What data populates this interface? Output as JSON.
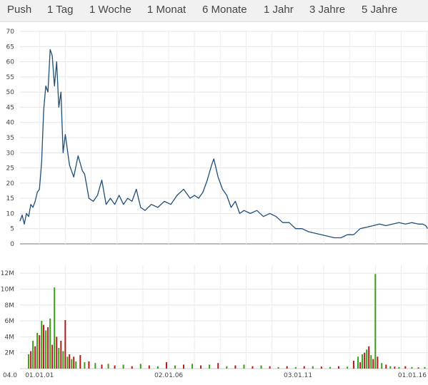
{
  "tabs": [
    {
      "id": "push",
      "label": "Push"
    },
    {
      "id": "1tag",
      "label": "1 Tag"
    },
    {
      "id": "1woche",
      "label": "1 Woche"
    },
    {
      "id": "1monat",
      "label": "1 Monat"
    },
    {
      "id": "6monate",
      "label": "6 Monate"
    },
    {
      "id": "1jahr",
      "label": "1 Jahr"
    },
    {
      "id": "3jahre",
      "label": "3 Jahre"
    },
    {
      "id": "5jahre",
      "label": "5 Jahre"
    }
  ],
  "chart_data": [
    {
      "type": "line",
      "title": "",
      "xlabel": "",
      "ylabel": "",
      "ylim": [
        0,
        70
      ],
      "y_ticks": [
        "0",
        "5",
        "10",
        "15",
        "20",
        "25",
        "30",
        "35",
        "40",
        "45",
        "50",
        "55",
        "60",
        "65",
        "70"
      ],
      "xlim": [
        "2000-04-01",
        "2016-01-15"
      ],
      "grid": true,
      "line_color": "#1f4e79",
      "series": [
        {
          "x": [
            "2000-04-01",
            "2000-05-01",
            "2000-06-01",
            "2000-07-01",
            "2000-08-01",
            "2000-09-01",
            "2000-10-01",
            "2000-11-01",
            "2000-12-01",
            "2001-01-01",
            "2001-02-01",
            "2001-03-01",
            "2001-04-01",
            "2001-05-01",
            "2001-06-01",
            "2001-07-01",
            "2001-08-01",
            "2001-09-01",
            "2001-10-01",
            "2001-11-01",
            "2001-12-01",
            "2002-01-01",
            "2002-03-01",
            "2002-05-01",
            "2002-07-01",
            "2002-09-01",
            "2002-10-01",
            "2002-11-01",
            "2002-12-01",
            "2003-02-01",
            "2003-04-01",
            "2003-06-01",
            "2003-08-01",
            "2003-10-01",
            "2003-12-01",
            "2004-02-01",
            "2004-04-01",
            "2004-06-01",
            "2004-08-01",
            "2004-10-01",
            "2004-12-01",
            "2005-02-01",
            "2005-05-01",
            "2005-08-01",
            "2005-11-01",
            "2006-02-01",
            "2006-05-01",
            "2006-08-01",
            "2006-11-01",
            "2007-01-01",
            "2007-03-01",
            "2007-05-01",
            "2007-07-01",
            "2007-09-01",
            "2007-10-01",
            "2007-12-01",
            "2008-02-01",
            "2008-04-01",
            "2008-06-01",
            "2008-08-01",
            "2008-10-01",
            "2008-12-01",
            "2009-03-01",
            "2009-06-01",
            "2009-09-01",
            "2009-12-01",
            "2010-03-01",
            "2010-06-01",
            "2010-09-01",
            "2010-12-01",
            "2011-03-01",
            "2011-06-01",
            "2011-09-01",
            "2011-12-01",
            "2012-03-01",
            "2012-06-01",
            "2012-09-01",
            "2012-12-01",
            "2013-03-01",
            "2013-06-01",
            "2013-09-01",
            "2013-12-01",
            "2014-03-01",
            "2014-06-01",
            "2014-09-01",
            "2014-12-01",
            "2015-03-01",
            "2015-06-01",
            "2015-09-01",
            "2015-11-01",
            "2015-12-15",
            "2016-01-10"
          ],
          "values": [
            7.5,
            9.5,
            6.5,
            10,
            9,
            13,
            12,
            14,
            17,
            18,
            27,
            44,
            52,
            50,
            64,
            62,
            52,
            60,
            45,
            50,
            30,
            36,
            26,
            22,
            29,
            24,
            23,
            19,
            15,
            14,
            16,
            21,
            13,
            15,
            13,
            16,
            13,
            15,
            14,
            18,
            12,
            11,
            13,
            12,
            14,
            13,
            16,
            18,
            15,
            16,
            15,
            17,
            21,
            26,
            28,
            22,
            18,
            16,
            12,
            14,
            10,
            11,
            10,
            11,
            9,
            10,
            9,
            7,
            7,
            5,
            5,
            4,
            3.5,
            3,
            2.5,
            2,
            2,
            3,
            3,
            5,
            5.5,
            6,
            6.5,
            6,
            6.5,
            7,
            6.5,
            7,
            6.5,
            6.5,
            6,
            5
          ]
        }
      ]
    },
    {
      "type": "bar",
      "title": "",
      "xlabel": "",
      "ylabel": "",
      "ylim": [
        0,
        13000000
      ],
      "y_ticks": [
        "2M",
        "4M",
        "6M",
        "8M",
        "10M",
        "12M"
      ],
      "x_ticks": [
        "04.0",
        "01.01.01",
        "02.01.06",
        "03.01.11",
        "01.01.16"
      ],
      "grid": true,
      "up_color": "#3a9c1a",
      "down_color": "#b01c1c",
      "series": [
        {
          "name": "",
          "x": [
            "2000-08",
            "2000-09",
            "2000-10",
            "2000-11",
            "2000-12",
            "2001-01",
            "2001-02",
            "2001-03",
            "2001-04",
            "2001-05",
            "2001-06",
            "2001-07",
            "2001-08",
            "2001-09",
            "2001-10",
            "2001-11",
            "2001-12",
            "2002-01",
            "2002-02",
            "2002-03",
            "2002-04",
            "2002-05",
            "2002-06",
            "2002-08",
            "2002-10",
            "2002-12",
            "2003-03",
            "2003-06",
            "2003-09",
            "2003-12",
            "2004-04",
            "2004-08",
            "2004-12",
            "2005-04",
            "2005-08",
            "2005-12",
            "2006-04",
            "2006-08",
            "2006-12",
            "2007-04",
            "2007-08",
            "2007-12",
            "2008-04",
            "2008-08",
            "2008-12",
            "2009-04",
            "2009-08",
            "2009-12",
            "2010-04",
            "2010-08",
            "2010-12",
            "2011-04",
            "2011-08",
            "2011-12",
            "2012-04",
            "2012-08",
            "2012-12",
            "2013-03",
            "2013-05",
            "2013-06",
            "2013-07",
            "2013-08",
            "2013-09",
            "2013-10",
            "2013-11",
            "2013-12",
            "2014-01",
            "2014-02",
            "2014-04",
            "2014-06",
            "2014-08",
            "2014-10",
            "2014-12",
            "2015-03",
            "2015-06",
            "2015-09",
            "2015-12"
          ],
          "values": [
            1800000,
            2200000,
            3500000,
            2800000,
            4500000,
            4200000,
            6000000,
            5500000,
            4800000,
            5200000,
            6300000,
            3000000,
            10200000,
            4000000,
            2600000,
            3500000,
            2200000,
            6100000,
            1500000,
            1800000,
            1200000,
            1500000,
            900000,
            1700000,
            800000,
            900000,
            700000,
            500000,
            600000,
            400000,
            500000,
            300000,
            600000,
            400000,
            300000,
            800000,
            400000,
            500000,
            600000,
            400000,
            500000,
            700000,
            300000,
            400000,
            500000,
            300000,
            400000,
            300000,
            200000,
            300000,
            200000,
            300000,
            300000,
            250000,
            200000,
            300000,
            250000,
            1000000,
            1500000,
            800000,
            1800000,
            2000000,
            2400000,
            2800000,
            1700000,
            1200000,
            11900000,
            1500000,
            700000,
            500000,
            300000,
            250000,
            200000,
            300000,
            200000,
            150000,
            200000
          ]
        }
      ]
    }
  ]
}
